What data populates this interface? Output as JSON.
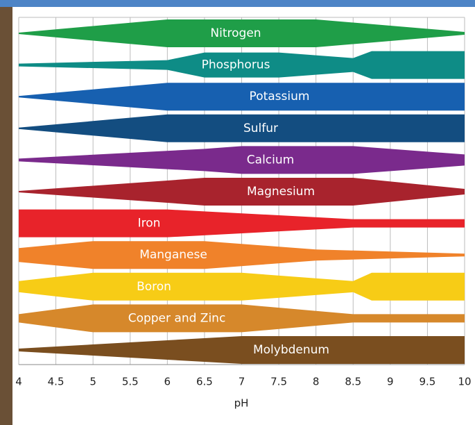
{
  "chart_data": {
    "type": "band",
    "xlabel": "pH",
    "xlim": [
      4,
      10
    ],
    "xticks": [
      4,
      4.5,
      5,
      5.5,
      6,
      6.5,
      7,
      7.5,
      8,
      8.5,
      9,
      9.5,
      10
    ],
    "grid": true,
    "series": [
      {
        "name": "Nitrogen",
        "color": "#1f9e48",
        "x": [
          4,
          6,
          8,
          10
        ],
        "values": [
          0.05,
          1,
          1,
          0.1
        ]
      },
      {
        "name": "Phosphorus",
        "color": "#0e8c86",
        "x": [
          4,
          6,
          6.5,
          7.5,
          8.5,
          8.75,
          10
        ],
        "values": [
          0.1,
          0.35,
          0.9,
          0.9,
          0.5,
          1,
          1
        ]
      },
      {
        "name": "Potassium",
        "color": "#1760b0",
        "x": [
          4,
          6,
          10
        ],
        "values": [
          0.05,
          1,
          1
        ]
      },
      {
        "name": "Sulfur",
        "color": "#134d80",
        "x": [
          4,
          6,
          10
        ],
        "values": [
          0.05,
          1,
          1
        ]
      },
      {
        "name": "Calcium",
        "color": "#7a2a8c",
        "x": [
          4,
          6.5,
          7,
          8.5,
          10
        ],
        "values": [
          0.1,
          0.8,
          1,
          1,
          0.4
        ]
      },
      {
        "name": "Magnesium",
        "color": "#a8232d",
        "x": [
          4,
          6,
          6.5,
          8.5,
          10
        ],
        "values": [
          0.05,
          0.8,
          1,
          1,
          0.2
        ]
      },
      {
        "name": "Iron",
        "color": "#e8232a",
        "x": [
          4,
          6,
          8.5,
          10
        ],
        "values": [
          1,
          1,
          0.3,
          0.3
        ]
      },
      {
        "name": "Manganese",
        "color": "#f0822a",
        "x": [
          4,
          5,
          6.5,
          8,
          10
        ],
        "values": [
          0.5,
          1,
          1,
          0.4,
          0.1
        ]
      },
      {
        "name": "Boron",
        "color": "#f7cc16",
        "x": [
          4,
          5,
          7,
          8.5,
          8.75,
          10
        ],
        "values": [
          0.4,
          1,
          1,
          0.4,
          1,
          1
        ]
      },
      {
        "name": "Copper and Zinc",
        "color": "#d6882b",
        "x": [
          4,
          5,
          7,
          8.5,
          10
        ],
        "values": [
          0.3,
          1,
          1,
          0.3,
          0.3
        ]
      },
      {
        "name": "Molybdenum",
        "color": "#7a4e1f",
        "x": [
          4,
          7,
          10
        ],
        "values": [
          0.1,
          1,
          1
        ]
      }
    ]
  }
}
